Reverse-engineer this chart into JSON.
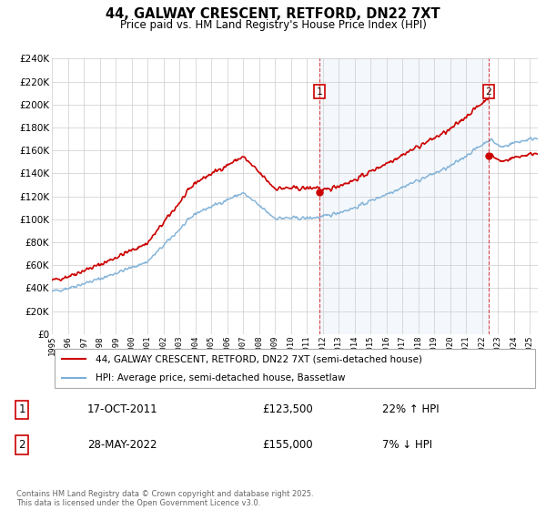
{
  "title": "44, GALWAY CRESCENT, RETFORD, DN22 7XT",
  "subtitle": "Price paid vs. HM Land Registry's House Price Index (HPI)",
  "ylim": [
    0,
    240000
  ],
  "yticks": [
    0,
    20000,
    40000,
    60000,
    80000,
    100000,
    120000,
    140000,
    160000,
    180000,
    200000,
    220000,
    240000
  ],
  "hpi_color": "#7aaed6",
  "price_color": "#cc0000",
  "background_color": "#ffffff",
  "grid_color": "#cccccc",
  "legend_label_price": "44, GALWAY CRESCENT, RETFORD, DN22 7XT (semi-detached house)",
  "legend_label_hpi": "HPI: Average price, semi-detached house, Bassetlaw",
  "annotation1_date": "17-OCT-2011",
  "annotation1_price": "£123,500",
  "annotation1_hpi": "22% ↑ HPI",
  "annotation2_date": "28-MAY-2022",
  "annotation2_price": "£155,000",
  "annotation2_hpi": "7% ↓ HPI",
  "footer": "Contains HM Land Registry data © Crown copyright and database right 2025.\nThis data is licensed under the Open Government Licence v3.0.",
  "sale1_year": 2011.79,
  "sale1_price": 123500,
  "sale2_year": 2022.41,
  "sale2_price": 155000,
  "init_year": 1995.0,
  "init_price": 47000
}
